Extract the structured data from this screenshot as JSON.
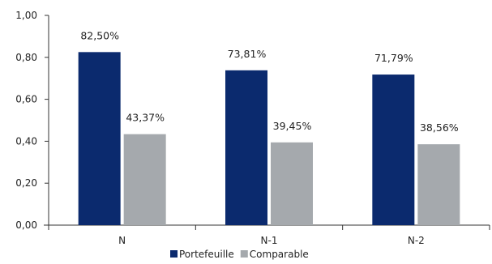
{
  "chart_data": {
    "type": "bar",
    "categories": [
      "N",
      "N-1",
      "N-2"
    ],
    "series": [
      {
        "name": "Portefeuille",
        "values": [
          0.825,
          0.7381,
          0.7179
        ],
        "labels": [
          "82,50%",
          "73,81%",
          "71,79%"
        ],
        "color": "#0b2a6e"
      },
      {
        "name": "Comparable",
        "values": [
          0.4337,
          0.3945,
          0.3856
        ],
        "labels": [
          "43,37%",
          "39,45%",
          "38,56%"
        ],
        "color": "#a5a9ad"
      }
    ],
    "yticks": [
      "0,00",
      "0,20",
      "0,40",
      "0,60",
      "0,80",
      "1,00"
    ],
    "ylim": [
      0,
      1
    ],
    "title": "",
    "xlabel": "",
    "ylabel": "",
    "grid": false,
    "legend": "bottom"
  }
}
